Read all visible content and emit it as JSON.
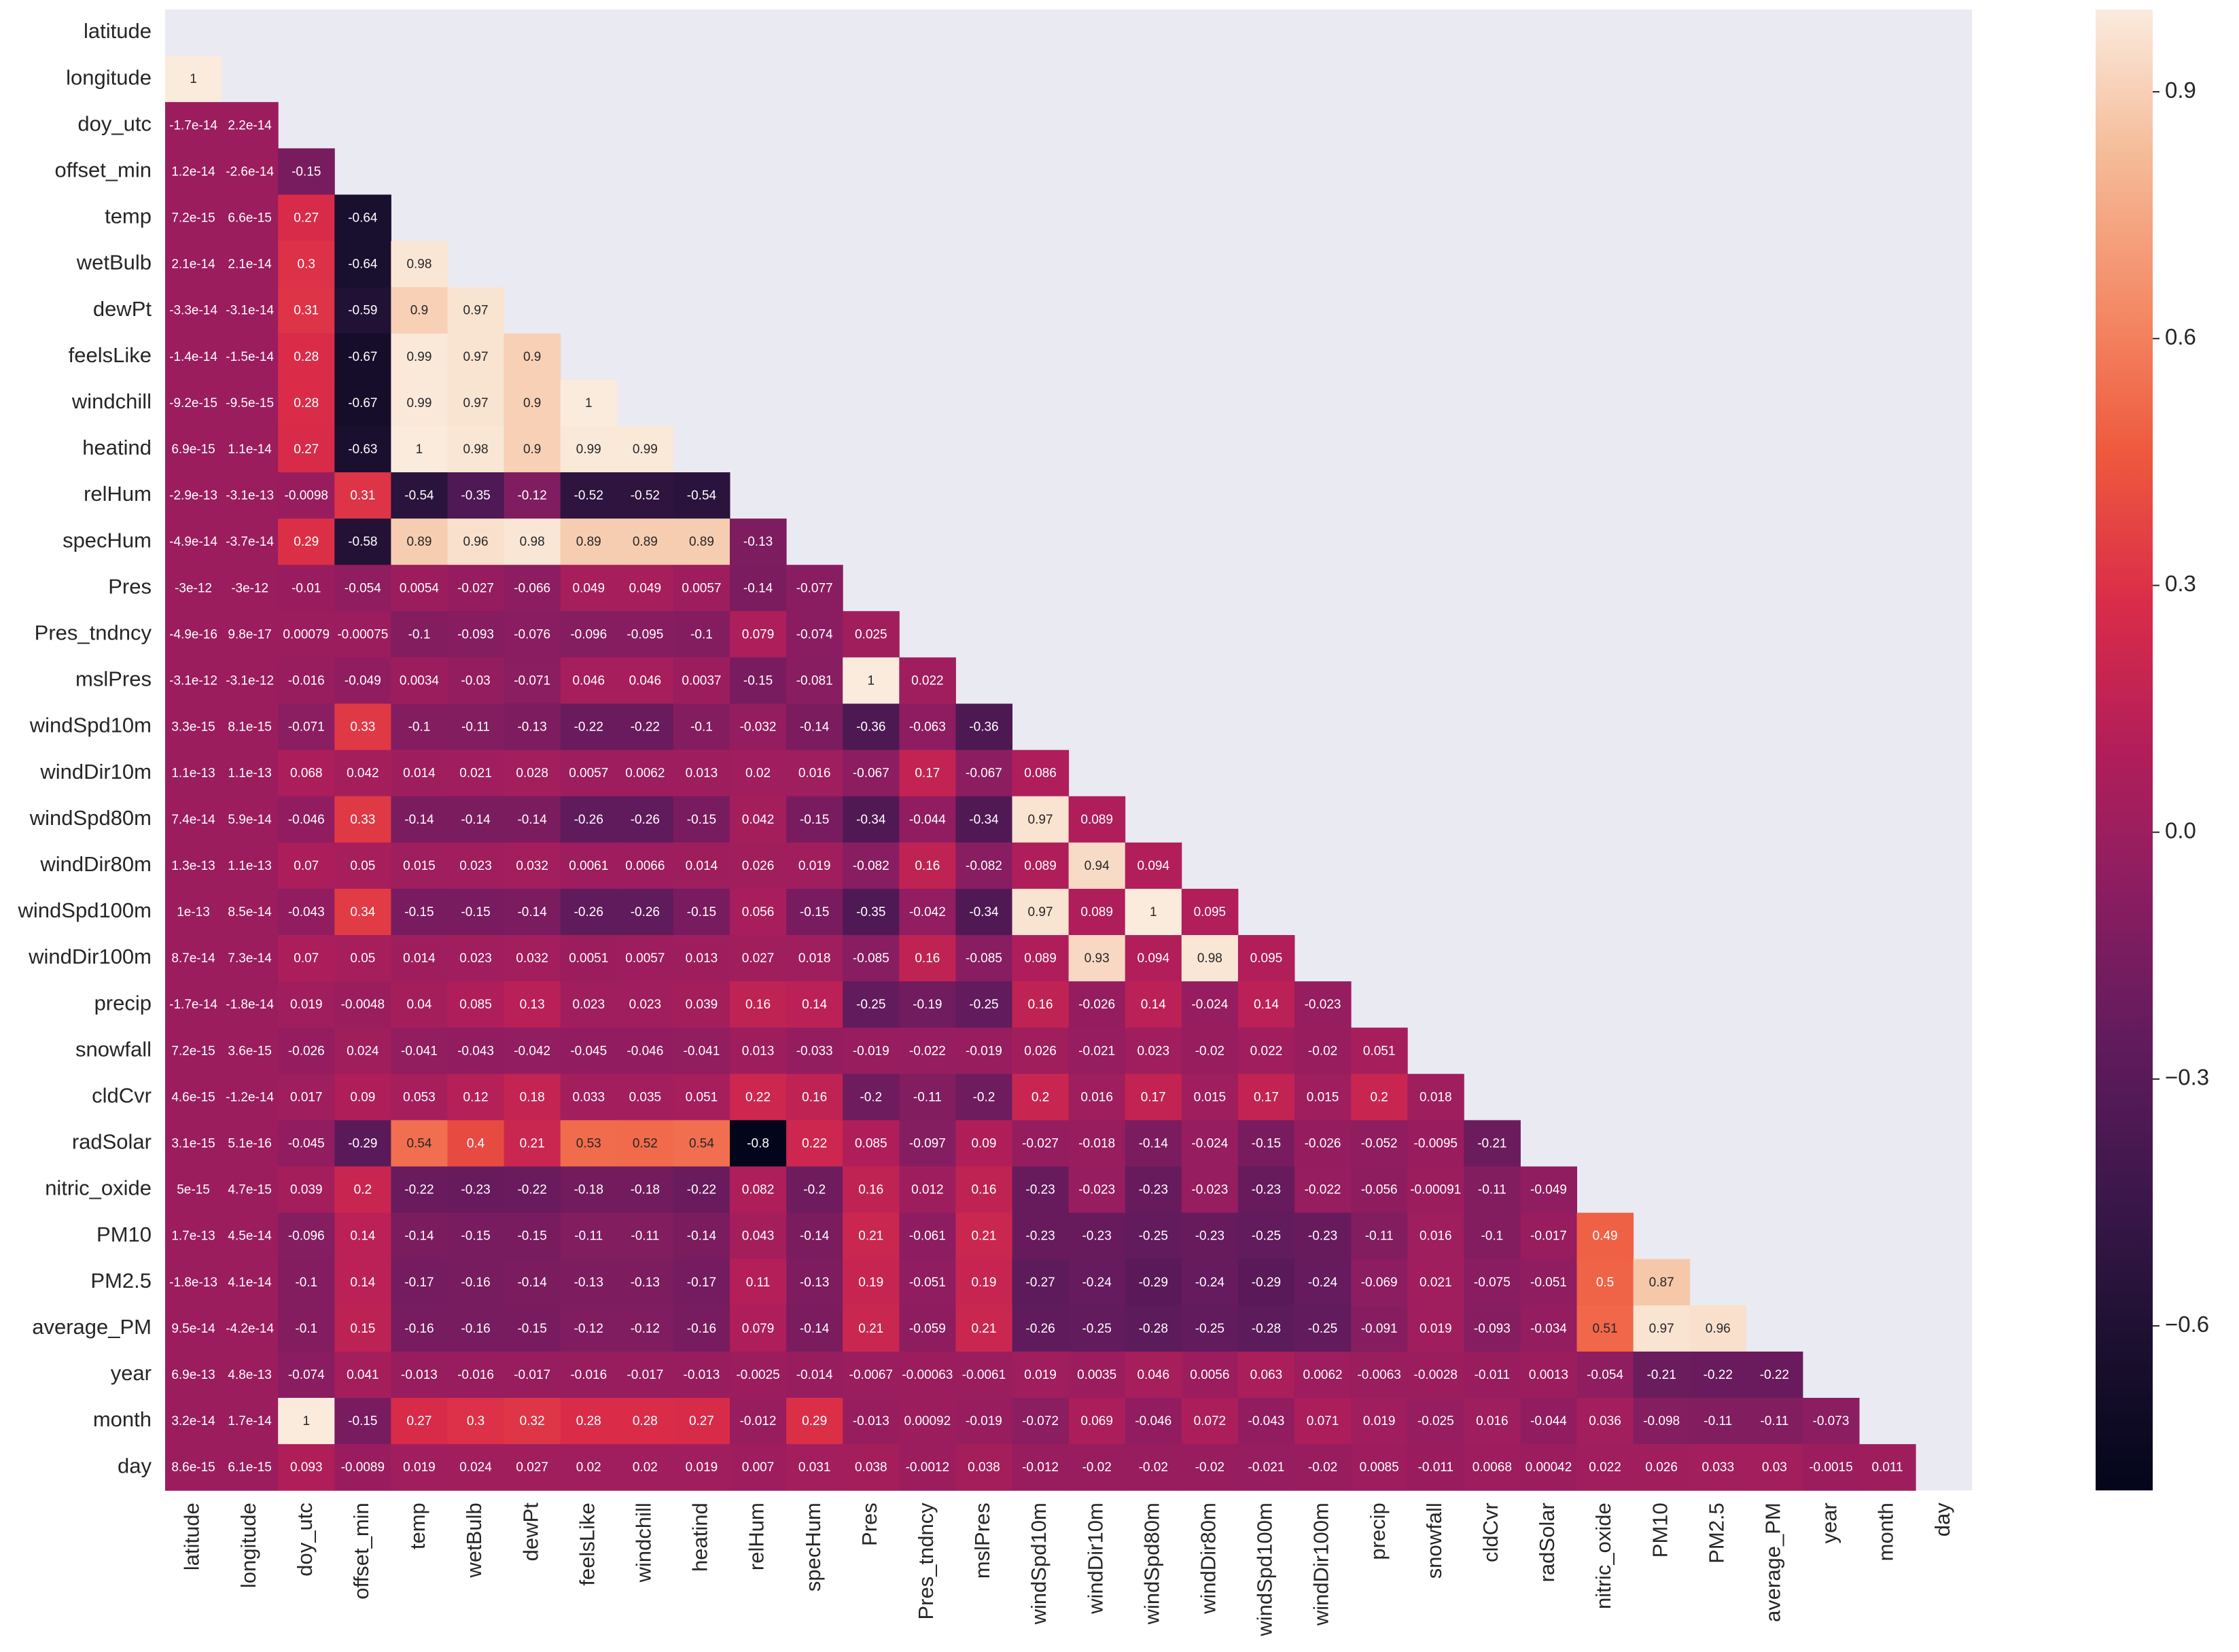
{
  "chart_data": {
    "type": "heatmap",
    "title": "",
    "labels": [
      "latitude",
      "longitude",
      "doy_utc",
      "offset_min",
      "temp",
      "wetBulb",
      "dewPt",
      "feelsLike",
      "windchill",
      "heatind",
      "relHum",
      "specHum",
      "Pres",
      "Pres_tndncy",
      "mslPres",
      "windSpd10m",
      "windDir10m",
      "windSpd80m",
      "windDir80m",
      "windSpd100m",
      "windDir100m",
      "precip",
      "snowfall",
      "cldCvr",
      "radSolar",
      "nitric_oxide",
      "PM10",
      "PM2.5",
      "average_PM",
      "year",
      "month",
      "day"
    ],
    "mask": "upper-triangle-including-diagonal",
    "colormap": "rocket",
    "vmin": -0.8,
    "vmax": 1.0,
    "background_color": "#eaeaf2",
    "colorbar_ticks": [
      0.9,
      0.6,
      0.3,
      0.0,
      -0.3,
      -0.6
    ],
    "colorbar_tick_labels": [
      "0.9",
      "0.6",
      "0.3",
      "0.0",
      "−0.3",
      "−0.6"
    ],
    "cells": [
      [],
      [
        "1"
      ],
      [
        "-1.7e-14",
        "2.2e-14"
      ],
      [
        "1.2e-14",
        "-2.6e-14",
        "-0.15"
      ],
      [
        "7.2e-15",
        "6.6e-15",
        "0.27",
        "-0.64"
      ],
      [
        "2.1e-14",
        "2.1e-14",
        "0.3",
        "-0.64",
        "0.98"
      ],
      [
        "-3.3e-14",
        "-3.1e-14",
        "0.31",
        "-0.59",
        "0.9",
        "0.97"
      ],
      [
        "-1.4e-14",
        "-1.5e-14",
        "0.28",
        "-0.67",
        "0.99",
        "0.97",
        "0.9"
      ],
      [
        "-9.2e-15",
        "-9.5e-15",
        "0.28",
        "-0.67",
        "0.99",
        "0.97",
        "0.9",
        "1"
      ],
      [
        "6.9e-15",
        "1.1e-14",
        "0.27",
        "-0.63",
        "1",
        "0.98",
        "0.9",
        "0.99",
        "0.99"
      ],
      [
        "-2.9e-13",
        "-3.1e-13",
        "-0.0098",
        "0.31",
        "-0.54",
        "-0.35",
        "-0.12",
        "-0.52",
        "-0.52",
        "-0.54"
      ],
      [
        "-4.9e-14",
        "-3.7e-14",
        "0.29",
        "-0.58",
        "0.89",
        "0.96",
        "0.98",
        "0.89",
        "0.89",
        "0.89",
        "-0.13"
      ],
      [
        "-3e-12",
        "-3e-12",
        "-0.01",
        "-0.054",
        "0.0054",
        "-0.027",
        "-0.066",
        "0.049",
        "0.049",
        "0.0057",
        "-0.14",
        "-0.077"
      ],
      [
        "-4.9e-16",
        "9.8e-17",
        "0.00079",
        "-0.00075",
        "-0.1",
        "-0.093",
        "-0.076",
        "-0.096",
        "-0.095",
        "-0.1",
        "0.079",
        "-0.074",
        "0.025"
      ],
      [
        "-3.1e-12",
        "-3.1e-12",
        "-0.016",
        "-0.049",
        "0.0034",
        "-0.03",
        "-0.071",
        "0.046",
        "0.046",
        "0.0037",
        "-0.15",
        "-0.081",
        "1",
        "0.022"
      ],
      [
        "3.3e-15",
        "8.1e-15",
        "-0.071",
        "0.33",
        "-0.1",
        "-0.11",
        "-0.13",
        "-0.22",
        "-0.22",
        "-0.1",
        "-0.032",
        "-0.14",
        "-0.36",
        "-0.063",
        "-0.36"
      ],
      [
        "1.1e-13",
        "1.1e-13",
        "0.068",
        "0.042",
        "0.014",
        "0.021",
        "0.028",
        "0.0057",
        "0.0062",
        "0.013",
        "0.02",
        "0.016",
        "-0.067",
        "0.17",
        "-0.067",
        "0.086"
      ],
      [
        "7.4e-14",
        "5.9e-14",
        "-0.046",
        "0.33",
        "-0.14",
        "-0.14",
        "-0.14",
        "-0.26",
        "-0.26",
        "-0.15",
        "0.042",
        "-0.15",
        "-0.34",
        "-0.044",
        "-0.34",
        "0.97",
        "0.089"
      ],
      [
        "1.3e-13",
        "1.1e-13",
        "0.07",
        "0.05",
        "0.015",
        "0.023",
        "0.032",
        "0.0061",
        "0.0066",
        "0.014",
        "0.026",
        "0.019",
        "-0.082",
        "0.16",
        "-0.082",
        "0.089",
        "0.94",
        "0.094"
      ],
      [
        "1e-13",
        "8.5e-14",
        "-0.043",
        "0.34",
        "-0.15",
        "-0.15",
        "-0.14",
        "-0.26",
        "-0.26",
        "-0.15",
        "0.056",
        "-0.15",
        "-0.35",
        "-0.042",
        "-0.34",
        "0.97",
        "0.089",
        "1",
        "0.095"
      ],
      [
        "8.7e-14",
        "7.3e-14",
        "0.07",
        "0.05",
        "0.014",
        "0.023",
        "0.032",
        "0.0051",
        "0.0057",
        "0.013",
        "0.027",
        "0.018",
        "-0.085",
        "0.16",
        "-0.085",
        "0.089",
        "0.93",
        "0.094",
        "0.98",
        "0.095"
      ],
      [
        "-1.7e-14",
        "-1.8e-14",
        "0.019",
        "-0.0048",
        "0.04",
        "0.085",
        "0.13",
        "0.023",
        "0.023",
        "0.039",
        "0.16",
        "0.14",
        "-0.25",
        "-0.19",
        "-0.25",
        "0.16",
        "-0.026",
        "0.14",
        "-0.024",
        "0.14",
        "-0.023"
      ],
      [
        "7.2e-15",
        "3.6e-15",
        "-0.026",
        "0.024",
        "-0.041",
        "-0.043",
        "-0.042",
        "-0.045",
        "-0.046",
        "-0.041",
        "0.013",
        "-0.033",
        "-0.019",
        "-0.022",
        "-0.019",
        "0.026",
        "-0.021",
        "0.023",
        "-0.02",
        "0.022",
        "-0.02",
        "0.051"
      ],
      [
        "4.6e-15",
        "-1.2e-14",
        "0.017",
        "0.09",
        "0.053",
        "0.12",
        "0.18",
        "0.033",
        "0.035",
        "0.051",
        "0.22",
        "0.16",
        "-0.2",
        "-0.11",
        "-0.2",
        "0.2",
        "0.016",
        "0.17",
        "0.015",
        "0.17",
        "0.015",
        "0.2",
        "0.018"
      ],
      [
        "3.1e-15",
        "5.1e-16",
        "-0.045",
        "-0.29",
        "0.54",
        "0.4",
        "0.21",
        "0.53",
        "0.52",
        "0.54",
        "-0.8",
        "0.22",
        "0.085",
        "-0.097",
        "0.09",
        "-0.027",
        "-0.018",
        "-0.14",
        "-0.024",
        "-0.15",
        "-0.026",
        "-0.052",
        "-0.0095",
        "-0.21"
      ],
      [
        "5e-15",
        "4.7e-15",
        "0.039",
        "0.2",
        "-0.22",
        "-0.23",
        "-0.22",
        "-0.18",
        "-0.18",
        "-0.22",
        "0.082",
        "-0.2",
        "0.16",
        "0.012",
        "0.16",
        "-0.23",
        "-0.023",
        "-0.23",
        "-0.023",
        "-0.23",
        "-0.022",
        "-0.056",
        "-0.00091",
        "-0.11",
        "-0.049"
      ],
      [
        "1.7e-13",
        "4.5e-14",
        "-0.096",
        "0.14",
        "-0.14",
        "-0.15",
        "-0.15",
        "-0.11",
        "-0.11",
        "-0.14",
        "0.043",
        "-0.14",
        "0.21",
        "-0.061",
        "0.21",
        "-0.23",
        "-0.23",
        "-0.25",
        "-0.23",
        "-0.25",
        "-0.23",
        "-0.11",
        "0.016",
        "-0.1",
        "-0.017",
        "0.49"
      ],
      [
        "-1.8e-13",
        "4.1e-14",
        "-0.1",
        "0.14",
        "-0.17",
        "-0.16",
        "-0.14",
        "-0.13",
        "-0.13",
        "-0.17",
        "0.11",
        "-0.13",
        "0.19",
        "-0.051",
        "0.19",
        "-0.27",
        "-0.24",
        "-0.29",
        "-0.24",
        "-0.29",
        "-0.24",
        "-0.069",
        "0.021",
        "-0.075",
        "-0.051",
        "0.5",
        "0.87"
      ],
      [
        "9.5e-14",
        "-4.2e-14",
        "-0.1",
        "0.15",
        "-0.16",
        "-0.16",
        "-0.15",
        "-0.12",
        "-0.12",
        "-0.16",
        "0.079",
        "-0.14",
        "0.21",
        "-0.059",
        "0.21",
        "-0.26",
        "-0.25",
        "-0.28",
        "-0.25",
        "-0.28",
        "-0.25",
        "-0.091",
        "0.019",
        "-0.093",
        "-0.034",
        "0.51",
        "0.97",
        "0.96"
      ],
      [
        "6.9e-13",
        "4.8e-13",
        "-0.074",
        "0.041",
        "-0.013",
        "-0.016",
        "-0.017",
        "-0.016",
        "-0.017",
        "-0.013",
        "-0.0025",
        "-0.014",
        "-0.0067",
        "-0.00063",
        "-0.0061",
        "0.019",
        "0.0035",
        "0.046",
        "0.0056",
        "0.063",
        "0.0062",
        "-0.0063",
        "-0.0028",
        "-0.011",
        "0.0013",
        "-0.054",
        "-0.21",
        "-0.22",
        "-0.22"
      ],
      [
        "3.2e-14",
        "1.7e-14",
        "1",
        "-0.15",
        "0.27",
        "0.3",
        "0.32",
        "0.28",
        "0.28",
        "0.27",
        "-0.012",
        "0.29",
        "-0.013",
        "0.00092",
        "-0.019",
        "-0.072",
        "0.069",
        "-0.046",
        "0.072",
        "-0.043",
        "0.071",
        "0.019",
        "-0.025",
        "0.016",
        "-0.044",
        "0.036",
        "-0.098",
        "-0.11",
        "-0.11",
        "-0.073"
      ],
      [
        "8.6e-15",
        "6.1e-15",
        "0.093",
        "-0.0089",
        "0.019",
        "0.024",
        "0.027",
        "0.02",
        "0.02",
        "0.019",
        "0.007",
        "0.031",
        "0.038",
        "-0.0012",
        "0.038",
        "-0.012",
        "-0.02",
        "-0.02",
        "-0.02",
        "-0.021",
        "-0.02",
        "0.0085",
        "-0.011",
        "0.0068",
        "0.00042",
        "0.022",
        "0.026",
        "0.033",
        "0.03",
        "-0.0015",
        "0.011"
      ]
    ]
  }
}
